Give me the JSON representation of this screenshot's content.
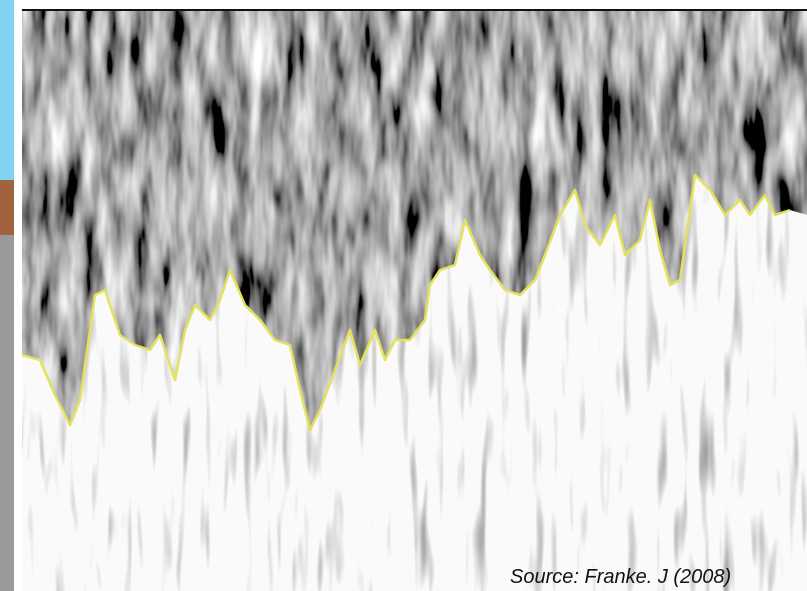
{
  "caption": "Source: Franke. J (2008)"
}
